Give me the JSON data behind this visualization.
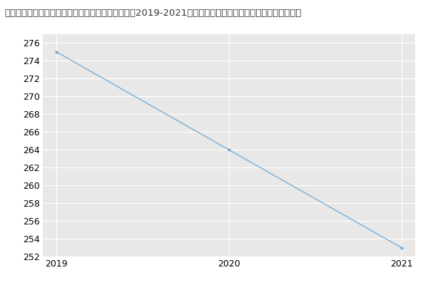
{
  "x": [
    2019,
    2020,
    2021
  ],
  "y": [
    275,
    264,
    253
  ],
  "line_color": "#7aadd4",
  "marker": "o",
  "marker_size": 2.5,
  "title": "河北农业大学信息科学与技术学院农业信息化技术（2019-2021历年复试）研究生录取分数线信息科学与技术",
  "title_fontsize": 9.5,
  "ylim": [
    252,
    277
  ],
  "yticks": [
    252,
    254,
    256,
    258,
    260,
    262,
    264,
    266,
    268,
    270,
    272,
    274,
    276
  ],
  "xticks": [
    2019,
    2020,
    2021
  ],
  "bg_color": "#ffffff",
  "plot_bg_color": "#e8e8e8",
  "grid_color": "#ffffff",
  "line_width": 1.0,
  "tick_fontsize": 9,
  "title_color": "#333333"
}
